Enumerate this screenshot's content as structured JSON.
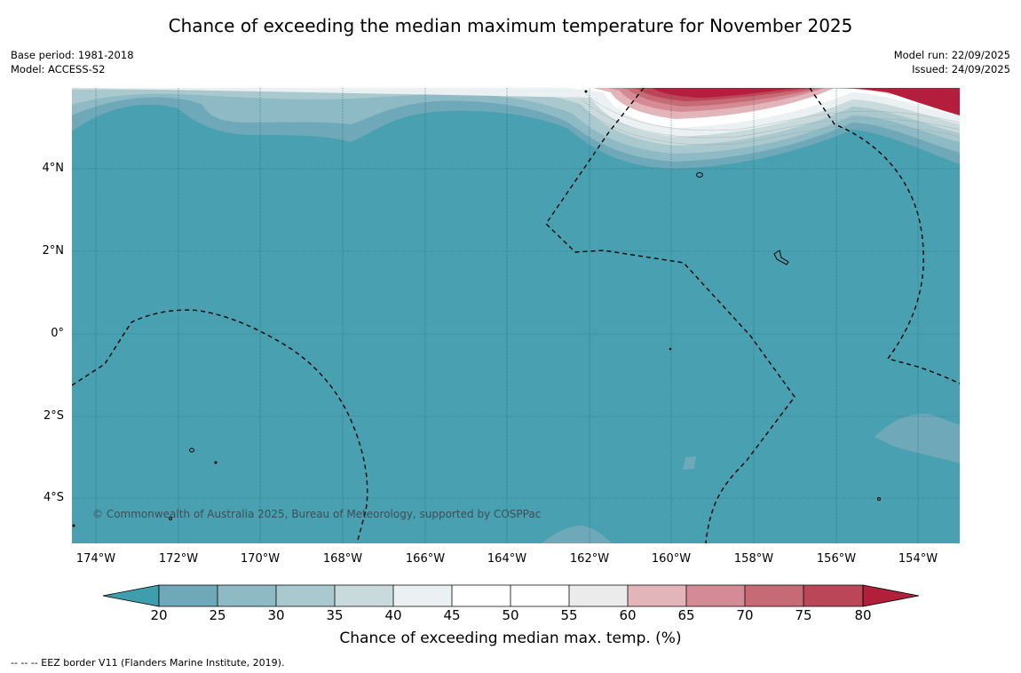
{
  "title": "Chance of exceeding the median maximum temperature for November 2025",
  "meta_left": {
    "base_period": "Base period: 1981-2018",
    "model": "Model: ACCESS-S2"
  },
  "meta_right": {
    "model_run": "Model run: 22/09/2025",
    "issued": "Issued: 24/09/2025"
  },
  "map": {
    "lat_labels": [
      "4°N",
      "2°N",
      "0°",
      "2°S",
      "4°S"
    ],
    "lon_labels": [
      "174°W",
      "172°W",
      "170°W",
      "168°W",
      "166°W",
      "164°W",
      "162°W",
      "160°W",
      "158°W",
      "156°W",
      "154°W"
    ],
    "copyright": "© Commonwealth of Australia 2025, Bureau of Meteorology, supported by COSPPac"
  },
  "colorbar": {
    "ticks": [
      "20",
      "25",
      "30",
      "35",
      "40",
      "45",
      "50",
      "55",
      "60",
      "65",
      "70",
      "75",
      "80"
    ],
    "colors": [
      "#6fa9b9",
      "#8dbac5",
      "#a9c9cf",
      "#c9dadc",
      "#ebf1f2",
      "#ffffff",
      "#ffffff",
      "#ebebeb",
      "#e2b5bb",
      "#d48b95",
      "#c66a75",
      "#bb4658"
    ],
    "under_color": "#3f9eac",
    "over_color": "#b0203b",
    "label": "Chance of exceeding median max. temp. (%)"
  },
  "footnote": "--  --  -- EEZ border V11 (Flanders Marine Institute, 2019).",
  "colors": {
    "base_teal": "#48a0b0",
    "hot_red": "#b41e3c"
  }
}
